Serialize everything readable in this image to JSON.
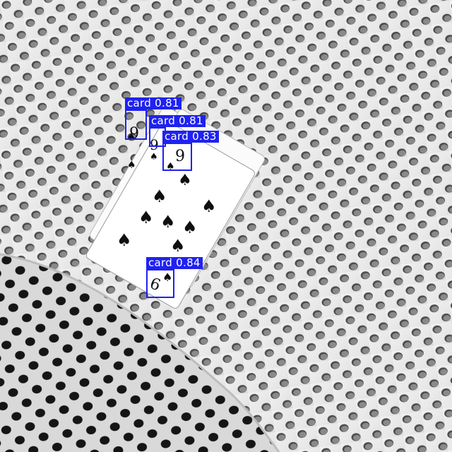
{
  "detections": [
    {
      "label": "card",
      "confidence": "0.81"
    },
    {
      "label": "card",
      "confidence": "0.81"
    },
    {
      "label": "card",
      "confidence": "0.83"
    },
    {
      "label": "card",
      "confidence": "0.84"
    }
  ],
  "colors": {
    "box": "#1f22f0",
    "label_text": "#ffffff",
    "surface": "#ececec",
    "holes": "#2a2a2a"
  },
  "scene": {
    "background": "perforated-white-plastic-sheet",
    "objects": "fanned-playing-cards-nine-of-spades"
  }
}
